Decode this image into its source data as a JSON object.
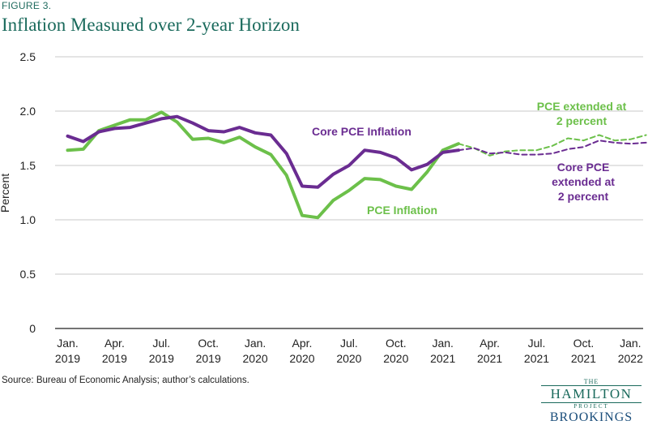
{
  "figure_label": "FIGURE 3.",
  "title": "Inflation Measured over 2-year Horizon",
  "source": "Source: Bureau of Economic Analysis; author’s calculations.",
  "logo": {
    "the": "THE",
    "name": "HAMILTON",
    "project": "PROJECT",
    "org": "BROOKINGS"
  },
  "colors": {
    "pce": "#6cc04a",
    "core": "#6a2c91",
    "grid": "#c9c9c9",
    "axis": "#222222"
  },
  "chart_data": {
    "type": "line",
    "ylabel": "Percent",
    "xlabel": "",
    "ylim": [
      0,
      2.5
    ],
    "yticks": [
      "0",
      "0.5",
      "1.0",
      "1.5",
      "2.0",
      "2.5"
    ],
    "ytick_values": [
      0,
      0.5,
      1.0,
      1.5,
      2.0,
      2.5
    ],
    "xtick_labels": [
      [
        "Jan.",
        "2019"
      ],
      [
        "Apr.",
        "2019"
      ],
      [
        "Jul.",
        "2019"
      ],
      [
        "Oct.",
        "2019"
      ],
      [
        "Jan.",
        "2020"
      ],
      [
        "Apr.",
        "2020"
      ],
      [
        "Jul.",
        "2020"
      ],
      [
        "Oct.",
        "2020"
      ],
      [
        "Jan.",
        "2021"
      ],
      [
        "Apr.",
        "2021"
      ],
      [
        "Jul.",
        "2021"
      ],
      [
        "Oct.",
        "2021"
      ],
      [
        "Jan.",
        "2022"
      ]
    ],
    "x_start": "2019-01",
    "grid": "horizontal",
    "series": [
      {
        "name": "PCE Inflation",
        "style": "solid",
        "color": "#6cc04a",
        "x": [
          "2019-01",
          "2019-02",
          "2019-03",
          "2019-04",
          "2019-05",
          "2019-06",
          "2019-07",
          "2019-08",
          "2019-09",
          "2019-10",
          "2019-11",
          "2019-12",
          "2020-01",
          "2020-02",
          "2020-03",
          "2020-04",
          "2020-05",
          "2020-06",
          "2020-07",
          "2020-08",
          "2020-09",
          "2020-10",
          "2020-11",
          "2020-12",
          "2021-01",
          "2021-02"
        ],
        "y": [
          1.64,
          1.65,
          1.82,
          1.87,
          1.92,
          1.92,
          1.99,
          1.9,
          1.74,
          1.75,
          1.71,
          1.76,
          1.67,
          1.6,
          1.41,
          1.04,
          1.02,
          1.18,
          1.27,
          1.38,
          1.37,
          1.31,
          1.28,
          1.44,
          1.64,
          1.7
        ]
      },
      {
        "name": "Core PCE Inflation",
        "style": "solid",
        "color": "#6a2c91",
        "x": [
          "2019-01",
          "2019-02",
          "2019-03",
          "2019-04",
          "2019-05",
          "2019-06",
          "2019-07",
          "2019-08",
          "2019-09",
          "2019-10",
          "2019-11",
          "2019-12",
          "2020-01",
          "2020-02",
          "2020-03",
          "2020-04",
          "2020-05",
          "2020-06",
          "2020-07",
          "2020-08",
          "2020-09",
          "2020-10",
          "2020-11",
          "2020-12",
          "2021-01",
          "2021-02"
        ],
        "y": [
          1.77,
          1.72,
          1.81,
          1.84,
          1.85,
          1.89,
          1.93,
          1.95,
          1.89,
          1.82,
          1.81,
          1.85,
          1.8,
          1.78,
          1.61,
          1.31,
          1.3,
          1.42,
          1.5,
          1.64,
          1.62,
          1.57,
          1.46,
          1.51,
          1.62,
          1.64
        ]
      },
      {
        "name": "PCE extended at 2 percent",
        "style": "dashed",
        "color": "#6cc04a",
        "x": [
          "2021-02",
          "2021-03",
          "2021-04",
          "2021-05",
          "2021-06",
          "2021-07",
          "2021-08",
          "2021-09",
          "2021-10",
          "2021-11",
          "2021-12",
          "2022-01",
          "2022-02"
        ],
        "y": [
          1.7,
          1.66,
          1.59,
          1.63,
          1.64,
          1.64,
          1.68,
          1.75,
          1.73,
          1.78,
          1.73,
          1.74,
          1.78
        ]
      },
      {
        "name": "Core PCE extended at 2 percent",
        "style": "dashed",
        "color": "#6a2c91",
        "x": [
          "2021-02",
          "2021-03",
          "2021-04",
          "2021-05",
          "2021-06",
          "2021-07",
          "2021-08",
          "2021-09",
          "2021-10",
          "2021-11",
          "2021-12",
          "2022-01",
          "2022-02"
        ],
        "y": [
          1.64,
          1.66,
          1.61,
          1.62,
          1.6,
          1.6,
          1.61,
          1.65,
          1.67,
          1.73,
          1.71,
          1.7,
          1.71
        ]
      }
    ],
    "annotations": [
      {
        "lines": [
          "Core PCE Inflation"
        ],
        "color": "#6a2c91"
      },
      {
        "lines": [
          "PCE Inflation"
        ],
        "color": "#6cc04a"
      },
      {
        "lines": [
          "PCE extended at",
          "2 percent"
        ],
        "color": "#6cc04a"
      },
      {
        "lines": [
          "Core PCE",
          "extended at",
          "2 percent"
        ],
        "color": "#6a2c91"
      }
    ]
  }
}
